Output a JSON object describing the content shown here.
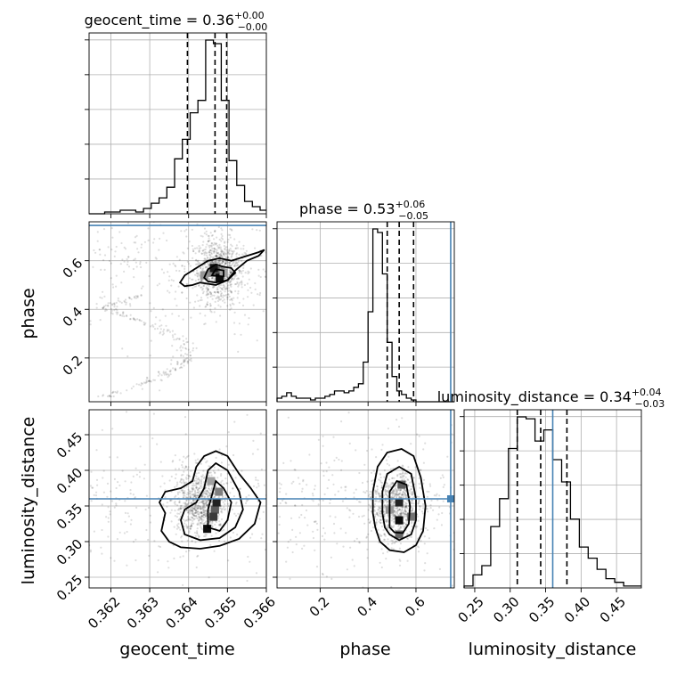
{
  "chart_data": {
    "type": "corner",
    "parameters": [
      "geocent_time",
      "phase",
      "luminosity_distance"
    ],
    "ranges": {
      "geocent_time": [
        0.36144,
        0.366
      ],
      "phase": [
        0.02,
        0.76
      ],
      "luminosity_distance": [
        0.235,
        0.485
      ]
    },
    "truth": {
      "geocent_time": null,
      "phase": 0.745,
      "luminosity_distance": 0.36
    },
    "titles": [
      {
        "param": "geocent_time",
        "label": "geocent_time = 0.36",
        "sup": "+0.00",
        "sub": "−0.00"
      },
      {
        "param": "phase",
        "label": "phase = 0.53",
        "sup": "+0.06",
        "sub": "−0.05"
      },
      {
        "param": "luminosity_distance",
        "label": "luminosity_distance = 0.34",
        "sup": "+0.04",
        "sub": "−0.03"
      }
    ],
    "axis_labels": {
      "geocent_time": "geocent_time",
      "phase": "phase",
      "luminosity_distance": "luminosity_distance"
    },
    "ticks": {
      "geocent_time": {
        "values": [
          0.362,
          0.363,
          0.364,
          0.365,
          0.366
        ],
        "labels": [
          "0.362",
          "0.363",
          "0.364",
          "0.365",
          "0.366"
        ]
      },
      "phase": {
        "values": [
          0.2,
          0.4,
          0.6
        ],
        "labels": [
          "0.2",
          "0.4",
          "0.6"
        ]
      },
      "luminosity_distance": {
        "values": [
          0.25,
          0.3,
          0.35,
          0.4,
          0.45
        ],
        "labels": [
          "0.25",
          "0.30",
          "0.35",
          "0.40",
          "0.45"
        ]
      }
    },
    "quantiles": {
      "geocent_time": [
        0.36397,
        0.36468,
        0.36498
      ],
      "phase": [
        0.48,
        0.53,
        0.59
      ],
      "luminosity_distance": [
        0.31,
        0.343,
        0.38
      ]
    },
    "hist1d": {
      "geocent_time": {
        "edges_start": 0.36144,
        "bin_width": 0.0002,
        "counts": [
          0,
          0,
          0.01,
          0.01,
          0.02,
          0.02,
          0.01,
          0.03,
          0.06,
          0.09,
          0.15,
          0.31,
          0.42,
          0.57,
          0.64,
          0.98,
          0.96,
          0.64,
          0.3,
          0.16,
          0.07,
          0.04,
          0.02
        ]
      },
      "phase": {
        "edges_start": 0.02,
        "bin_width": 0.02,
        "counts": [
          0.02,
          0.03,
          0.05,
          0.03,
          0.02,
          0.02,
          0.02,
          0.01,
          0.02,
          0.02,
          0.03,
          0.04,
          0.06,
          0.06,
          0.05,
          0.06,
          0.08,
          0.1,
          0.22,
          0.5,
          0.96,
          0.94,
          0.71,
          0.33,
          0.14,
          0.06,
          0.04,
          0.02,
          0.01,
          0,
          0,
          0,
          0,
          0,
          0,
          0,
          0
        ]
      },
      "luminosity_distance": {
        "edges_start": 0.235,
        "bin_width": 0.0125,
        "counts": [
          0.01,
          0.07,
          0.12,
          0.33,
          0.48,
          0.75,
          0.92,
          0.91,
          0.79,
          0.85,
          0.69,
          0.57,
          0.37,
          0.22,
          0.16,
          0.1,
          0.05,
          0.03,
          0.01,
          0.01
        ]
      }
    },
    "hist2d": [
      {
        "x": "geocent_time",
        "y": "phase",
        "dense_cells": [
          {
            "x": 0.3646,
            "y": 0.55,
            "w": 0.4
          },
          {
            "x": 0.3647,
            "y": 0.56,
            "w": 0.6
          },
          {
            "x": 0.36465,
            "y": 0.57,
            "w": 0.9
          },
          {
            "x": 0.3648,
            "y": 0.53,
            "w": 0.95
          },
          {
            "x": 0.3644,
            "y": 0.54,
            "w": 0.35
          },
          {
            "x": 0.3649,
            "y": 0.55,
            "w": 0.3
          }
        ],
        "contours": [
          [
            [
              0.36378,
              0.51
            ],
            [
              0.3639,
              0.54
            ],
            [
              0.3642,
              0.57
            ],
            [
              0.3645,
              0.6
            ],
            [
              0.3648,
              0.61
            ],
            [
              0.3651,
              0.6
            ],
            [
              0.3654,
              0.615
            ],
            [
              0.3658,
              0.635
            ],
            [
              0.36595,
              0.645
            ],
            [
              0.3658,
              0.62
            ],
            [
              0.3655,
              0.6
            ],
            [
              0.3652,
              0.56
            ],
            [
              0.365,
              0.52
            ],
            [
              0.3647,
              0.5
            ],
            [
              0.3643,
              0.51
            ],
            [
              0.3641,
              0.5
            ],
            [
              0.3639,
              0.495
            ],
            [
              0.36378,
              0.51
            ]
          ],
          [
            [
              0.3644,
              0.53
            ],
            [
              0.3645,
              0.565
            ],
            [
              0.3647,
              0.585
            ],
            [
              0.3649,
              0.575
            ],
            [
              0.3651,
              0.57
            ],
            [
              0.3652,
              0.55
            ],
            [
              0.365,
              0.52
            ],
            [
              0.3647,
              0.51
            ],
            [
              0.3645,
              0.515
            ],
            [
              0.3644,
              0.53
            ]
          ],
          [
            [
              0.3646,
              0.54
            ],
            [
              0.3647,
              0.565
            ],
            [
              0.3649,
              0.56
            ],
            [
              0.3649,
              0.535
            ],
            [
              0.3646,
              0.54
            ]
          ]
        ]
      },
      {
        "x": "geocent_time",
        "y": "luminosity_distance",
        "dense_cells": [
          {
            "x": 0.36468,
            "y": 0.345,
            "w": 0.6
          },
          {
            "x": 0.36472,
            "y": 0.355,
            "w": 0.85
          },
          {
            "x": 0.36464,
            "y": 0.335,
            "w": 0.75
          },
          {
            "x": 0.36448,
            "y": 0.318,
            "w": 0.95
          },
          {
            "x": 0.36478,
            "y": 0.37,
            "w": 0.45
          },
          {
            "x": 0.36458,
            "y": 0.385,
            "w": 0.3
          }
        ],
        "contours": [
          [
            [
              0.36325,
              0.355
            ],
            [
              0.3634,
              0.34
            ],
            [
              0.3633,
              0.315
            ],
            [
              0.3635,
              0.3
            ],
            [
              0.3638,
              0.292
            ],
            [
              0.3643,
              0.29
            ],
            [
              0.3648,
              0.294
            ],
            [
              0.3653,
              0.304
            ],
            [
              0.3657,
              0.325
            ],
            [
              0.36585,
              0.355
            ],
            [
              0.3656,
              0.375
            ],
            [
              0.3653,
              0.395
            ],
            [
              0.365,
              0.42
            ],
            [
              0.3647,
              0.427
            ],
            [
              0.3644,
              0.42
            ],
            [
              0.3642,
              0.405
            ],
            [
              0.3641,
              0.385
            ],
            [
              0.3638,
              0.375
            ],
            [
              0.3634,
              0.37
            ],
            [
              0.36325,
              0.355
            ]
          ],
          [
            [
              0.3638,
              0.33
            ],
            [
              0.3639,
              0.31
            ],
            [
              0.3643,
              0.302
            ],
            [
              0.3648,
              0.305
            ],
            [
              0.3652,
              0.32
            ],
            [
              0.3654,
              0.345
            ],
            [
              0.3653,
              0.37
            ],
            [
              0.365,
              0.4
            ],
            [
              0.3647,
              0.41
            ],
            [
              0.3645,
              0.4
            ],
            [
              0.3644,
              0.375
            ],
            [
              0.3642,
              0.355
            ],
            [
              0.3639,
              0.345
            ],
            [
              0.3638,
              0.33
            ]
          ],
          [
            [
              0.3645,
              0.32
            ],
            [
              0.3648,
              0.315
            ],
            [
              0.365,
              0.33
            ],
            [
              0.3651,
              0.355
            ],
            [
              0.3649,
              0.375
            ],
            [
              0.3647,
              0.385
            ],
            [
              0.3646,
              0.365
            ],
            [
              0.3645,
              0.345
            ],
            [
              0.3645,
              0.32
            ]
          ]
        ]
      },
      {
        "x": "phase",
        "y": "luminosity_distance",
        "dense_cells": [
          {
            "x": 0.53,
            "y": 0.33,
            "w": 0.95
          },
          {
            "x": 0.53,
            "y": 0.355,
            "w": 0.85
          },
          {
            "x": 0.54,
            "y": 0.38,
            "w": 0.6
          },
          {
            "x": 0.58,
            "y": 0.335,
            "w": 0.5
          },
          {
            "x": 0.53,
            "y": 0.31,
            "w": 0.55
          },
          {
            "x": 0.49,
            "y": 0.345,
            "w": 0.35
          }
        ],
        "contours": [
          [
            [
              0.42,
              0.34
            ],
            [
              0.42,
              0.37
            ],
            [
              0.44,
              0.405
            ],
            [
              0.48,
              0.425
            ],
            [
              0.54,
              0.43
            ],
            [
              0.59,
              0.42
            ],
            [
              0.62,
              0.39
            ],
            [
              0.64,
              0.35
            ],
            [
              0.63,
              0.315
            ],
            [
              0.6,
              0.295
            ],
            [
              0.55,
              0.285
            ],
            [
              0.49,
              0.288
            ],
            [
              0.45,
              0.3
            ],
            [
              0.43,
              0.32
            ],
            [
              0.42,
              0.34
            ]
          ],
          [
            [
              0.46,
              0.34
            ],
            [
              0.46,
              0.37
            ],
            [
              0.48,
              0.395
            ],
            [
              0.53,
              0.405
            ],
            [
              0.58,
              0.395
            ],
            [
              0.6,
              0.36
            ],
            [
              0.6,
              0.33
            ],
            [
              0.58,
              0.31
            ],
            [
              0.53,
              0.302
            ],
            [
              0.49,
              0.31
            ],
            [
              0.47,
              0.32
            ],
            [
              0.46,
              0.34
            ]
          ],
          [
            [
              0.49,
              0.32
            ],
            [
              0.49,
              0.37
            ],
            [
              0.52,
              0.385
            ],
            [
              0.56,
              0.38
            ],
            [
              0.575,
              0.35
            ],
            [
              0.57,
              0.325
            ],
            [
              0.545,
              0.312
            ],
            [
              0.51,
              0.313
            ],
            [
              0.49,
              0.32
            ]
          ]
        ]
      }
    ]
  }
}
